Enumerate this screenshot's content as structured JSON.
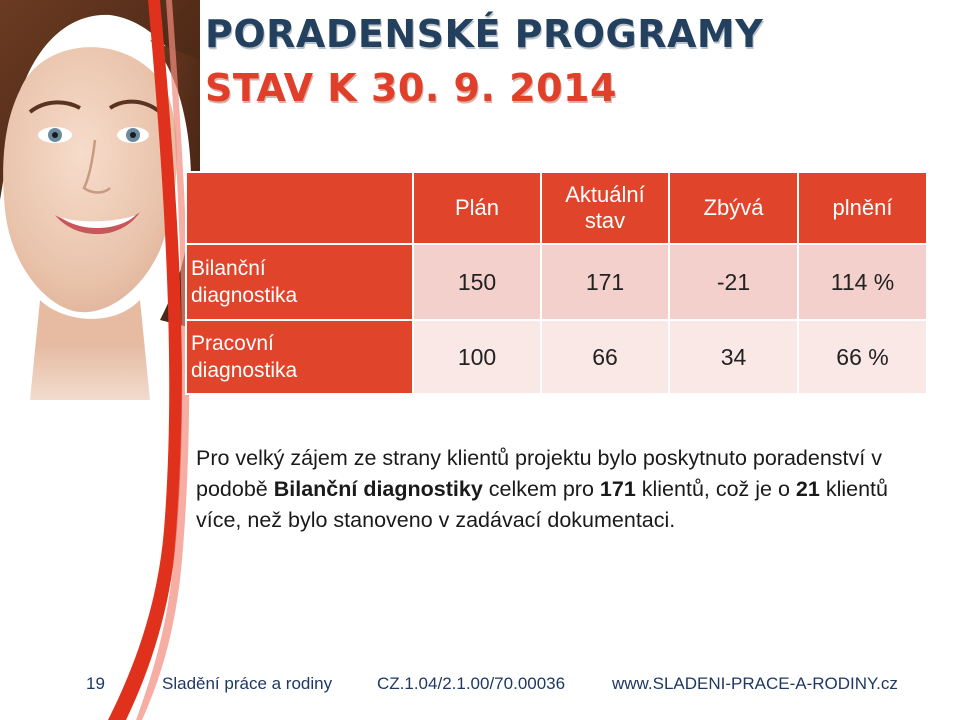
{
  "header": {
    "title": "PORADENSKÉ PROGRAMY",
    "subtitle": "STAV K 30. 9. 2014"
  },
  "table": {
    "columns": [
      "Plán",
      "Aktuální stav",
      "Zbývá",
      "plnění"
    ],
    "rows": [
      {
        "label": "Bilanční diagnostika",
        "values": [
          "150",
          "171",
          "-21",
          "114 %"
        ]
      },
      {
        "label": "Pracovní diagnostika",
        "values": [
          "100",
          "66",
          "34",
          "66 %"
        ]
      }
    ]
  },
  "note": {
    "part1": "Pro velký zájem ze strany klientů projektu bylo poskytnuto poradenství v podobě ",
    "bold1": "Bilanční diagnostiky",
    "part2": " celkem pro ",
    "bold2": "171",
    "part3": " klientů, což je o ",
    "bold3": "21",
    "part4": " klientů více, než bylo stanoveno v zadávací dokumentaci."
  },
  "footer": {
    "page_number": "19",
    "left": "Sladění práce a rodiny",
    "middle": "CZ.1.04/2.1.00/70.00036",
    "right": "www.SLADENI-PRACE-A-RODINY.cz"
  },
  "colors": {
    "accent_red": "#e0442a",
    "title_navy": "#23415f",
    "row1_fill": "#f4d0cd",
    "row2_fill": "#f9e8e6"
  }
}
